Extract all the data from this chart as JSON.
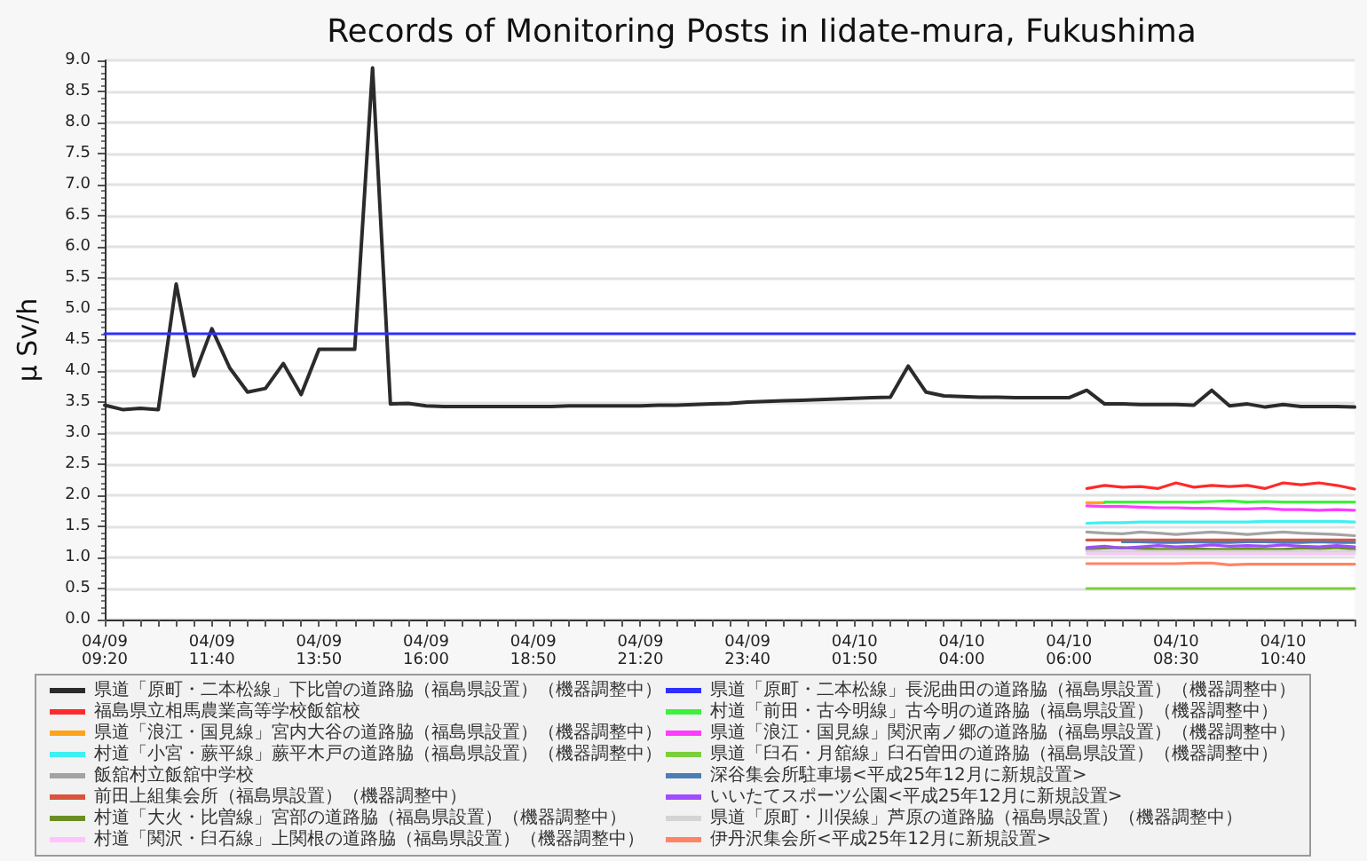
{
  "chart_data": {
    "type": "line",
    "title": "Records of Monitoring Posts in Iidate-mura, Fukushima",
    "ylabel": "μ Sv/h",
    "categories": [
      "04/09 09:20",
      null,
      null,
      null,
      null,
      null,
      "04/09 11:40",
      null,
      null,
      null,
      null,
      null,
      "04/09 13:50",
      null,
      null,
      null,
      null,
      null,
      "04/09 16:00",
      null,
      null,
      null,
      null,
      null,
      "04/09 18:50",
      null,
      null,
      null,
      null,
      null,
      "04/09 21:20",
      null,
      null,
      null,
      null,
      null,
      "04/09 23:40",
      null,
      null,
      null,
      null,
      null,
      "04/10 01:50",
      null,
      null,
      null,
      null,
      null,
      "04/10 04:00",
      null,
      null,
      null,
      null,
      null,
      "04/10 06:00",
      null,
      null,
      null,
      null,
      null,
      "04/10 08:30",
      null,
      null,
      null,
      null,
      null,
      "04/10 10:40",
      null,
      null,
      null,
      null
    ],
    "series": [
      {
        "name": "県道「原町・二本松線」下比曽の道路脇（福島県設置）（機器調整中）",
        "color": "#2b2b2b",
        "values": [
          3.45,
          3.38,
          3.4,
          3.38,
          5.4,
          3.92,
          4.68,
          4.05,
          3.66,
          3.72,
          4.12,
          3.62,
          4.35,
          4.35,
          4.35,
          8.88,
          3.47,
          3.48,
          3.44,
          3.43,
          3.43,
          3.43,
          3.43,
          3.43,
          3.43,
          3.43,
          3.44,
          3.44,
          3.44,
          3.44,
          3.44,
          3.45,
          3.45,
          3.46,
          3.47,
          3.48,
          3.5,
          3.51,
          3.52,
          3.53,
          3.54,
          3.55,
          3.56,
          3.57,
          3.58,
          4.08,
          3.66,
          3.6,
          3.59,
          3.58,
          3.58,
          3.57,
          3.57,
          3.57,
          3.57,
          3.69,
          3.47,
          3.47,
          3.46,
          3.46,
          3.46,
          3.45,
          3.69,
          3.44,
          3.47,
          3.42,
          3.46,
          3.43,
          3.43,
          3.43,
          3.42
        ]
      },
      {
        "name": "福島県立相馬農業高等学校飯舘校",
        "color": "#ff2a2a",
        "values": [
          null,
          null,
          null,
          null,
          null,
          null,
          null,
          null,
          null,
          null,
          null,
          null,
          null,
          null,
          null,
          null,
          null,
          null,
          null,
          null,
          null,
          null,
          null,
          null,
          null,
          null,
          null,
          null,
          null,
          null,
          null,
          null,
          null,
          null,
          null,
          null,
          null,
          null,
          null,
          null,
          null,
          null,
          null,
          null,
          null,
          null,
          null,
          null,
          null,
          null,
          null,
          null,
          null,
          null,
          null,
          2.11,
          2.16,
          2.13,
          2.14,
          2.11,
          2.2,
          2.13,
          2.16,
          2.14,
          2.16,
          2.11,
          2.2,
          2.17,
          2.2,
          2.16,
          2.1
        ]
      },
      {
        "name": "県道「浪江・国見線」宮内大谷の道路脇（福島県設置）（機器調整中）",
        "color": "#ffa31a",
        "values": [
          null,
          null,
          null,
          null,
          null,
          null,
          null,
          null,
          null,
          null,
          null,
          null,
          null,
          null,
          null,
          null,
          null,
          null,
          null,
          null,
          null,
          null,
          null,
          null,
          null,
          null,
          null,
          null,
          null,
          null,
          null,
          null,
          null,
          null,
          null,
          null,
          null,
          null,
          null,
          null,
          null,
          null,
          null,
          null,
          null,
          null,
          null,
          null,
          null,
          null,
          null,
          null,
          null,
          null,
          null,
          1.88,
          1.88,
          null,
          null,
          null,
          null,
          null,
          null,
          null,
          null,
          null,
          null,
          null,
          null,
          null,
          null
        ]
      },
      {
        "name": "村道「小宮・蕨平線」蕨平木戸の道路脇（福島県設置）（機器調整中）",
        "color": "#3ff0f0",
        "values": [
          null,
          null,
          null,
          null,
          null,
          null,
          null,
          null,
          null,
          null,
          null,
          null,
          null,
          null,
          null,
          null,
          null,
          null,
          null,
          null,
          null,
          null,
          null,
          null,
          null,
          null,
          null,
          null,
          null,
          null,
          null,
          null,
          null,
          null,
          null,
          null,
          null,
          null,
          null,
          null,
          null,
          null,
          null,
          null,
          null,
          null,
          null,
          null,
          null,
          null,
          null,
          null,
          null,
          null,
          null,
          1.55,
          1.56,
          1.56,
          1.57,
          1.57,
          1.57,
          1.57,
          1.57,
          1.57,
          1.57,
          1.58,
          1.58,
          1.58,
          1.58,
          1.58,
          1.57
        ]
      },
      {
        "name": "飯舘村立飯舘中学校",
        "color": "#a3a3a3",
        "values": [
          null,
          null,
          null,
          null,
          null,
          null,
          null,
          null,
          null,
          null,
          null,
          null,
          null,
          null,
          null,
          null,
          null,
          null,
          null,
          null,
          null,
          null,
          null,
          null,
          null,
          null,
          null,
          null,
          null,
          null,
          null,
          null,
          null,
          null,
          null,
          null,
          null,
          null,
          null,
          null,
          null,
          null,
          null,
          null,
          null,
          null,
          null,
          null,
          null,
          null,
          null,
          null,
          null,
          null,
          null,
          1.41,
          1.39,
          1.38,
          1.41,
          1.39,
          1.37,
          1.39,
          1.41,
          1.39,
          1.37,
          1.39,
          1.41,
          1.39,
          1.38,
          1.37,
          1.35
        ]
      },
      {
        "name": "前田上組集会所（福島県設置）（機器調整中）",
        "color": "#d9543f",
        "values": [
          null,
          null,
          null,
          null,
          null,
          null,
          null,
          null,
          null,
          null,
          null,
          null,
          null,
          null,
          null,
          null,
          null,
          null,
          null,
          null,
          null,
          null,
          null,
          null,
          null,
          null,
          null,
          null,
          null,
          null,
          null,
          null,
          null,
          null,
          null,
          null,
          null,
          null,
          null,
          null,
          null,
          null,
          null,
          null,
          null,
          null,
          null,
          null,
          null,
          null,
          null,
          null,
          null,
          null,
          null,
          1.28,
          1.28,
          1.28,
          1.28,
          1.28,
          1.28,
          1.28,
          1.28,
          1.28,
          1.28,
          1.28,
          1.28,
          1.28,
          1.28,
          1.28,
          1.28
        ]
      },
      {
        "name": "村道「大火・比曽線」宮部の道路脇（福島県設置）（機器調整中）",
        "color": "#6b8e23",
        "values": [
          null,
          null,
          null,
          null,
          null,
          null,
          null,
          null,
          null,
          null,
          null,
          null,
          null,
          null,
          null,
          null,
          null,
          null,
          null,
          null,
          null,
          null,
          null,
          null,
          null,
          null,
          null,
          null,
          null,
          null,
          null,
          null,
          null,
          null,
          null,
          null,
          null,
          null,
          null,
          null,
          null,
          null,
          null,
          null,
          null,
          null,
          null,
          null,
          null,
          null,
          null,
          null,
          null,
          null,
          null,
          1.13,
          1.15,
          1.16,
          1.14,
          1.13,
          1.13,
          1.14,
          1.13,
          1.13,
          1.14,
          1.13,
          1.13,
          1.15,
          1.14,
          1.16,
          1.13
        ]
      },
      {
        "name": "村道「関沢・臼石線」上関根の道路脇（福島県設置）（機器調整中）",
        "color": "#ffc4ff",
        "values": [
          null,
          null,
          null,
          null,
          null,
          null,
          null,
          null,
          null,
          null,
          null,
          null,
          null,
          null,
          null,
          null,
          null,
          null,
          null,
          null,
          null,
          null,
          null,
          null,
          null,
          null,
          null,
          null,
          null,
          null,
          null,
          null,
          null,
          null,
          null,
          null,
          null,
          null,
          null,
          null,
          null,
          null,
          null,
          null,
          null,
          null,
          null,
          null,
          null,
          null,
          null,
          null,
          null,
          null,
          null,
          1.06,
          1.06,
          1.06,
          1.06,
          1.06,
          1.06,
          1.06,
          1.06,
          1.06,
          1.06,
          1.06,
          1.06,
          1.06,
          1.06,
          1.06,
          1.06
        ]
      },
      {
        "name": "県道「原町・二本松線」長泥曲田の道路脇（福島県設置）（機器調整中）",
        "color": "#2f2fff",
        "values": [
          4.6,
          4.6,
          4.6,
          4.6,
          4.6,
          4.6,
          4.6,
          4.6,
          4.6,
          4.6,
          4.6,
          4.6,
          4.6,
          4.6,
          4.6,
          4.6,
          4.6,
          4.6,
          4.6,
          4.6,
          4.6,
          4.6,
          4.6,
          4.6,
          4.6,
          4.6,
          4.6,
          4.6,
          4.6,
          4.6,
          4.6,
          4.6,
          4.6,
          4.6,
          4.6,
          4.6,
          4.6,
          4.6,
          4.6,
          4.6,
          4.6,
          4.6,
          4.6,
          4.6,
          4.6,
          4.6,
          4.6,
          4.6,
          4.6,
          4.6,
          4.6,
          4.6,
          4.6,
          4.6,
          4.6,
          4.6,
          4.6,
          4.6,
          4.6,
          4.6,
          4.6,
          4.6,
          4.6,
          4.6,
          4.6,
          4.6,
          4.6,
          4.6,
          4.6,
          4.6,
          4.6
        ]
      },
      {
        "name": "村道「前田・古今明線」古今明の道路脇（福島県設置）（機器調整中）",
        "color": "#3cf03c",
        "values": [
          null,
          null,
          null,
          null,
          null,
          null,
          null,
          null,
          null,
          null,
          null,
          null,
          null,
          null,
          null,
          null,
          null,
          null,
          null,
          null,
          null,
          null,
          null,
          null,
          null,
          null,
          null,
          null,
          null,
          null,
          null,
          null,
          null,
          null,
          null,
          null,
          null,
          null,
          null,
          null,
          null,
          null,
          null,
          null,
          null,
          null,
          null,
          null,
          null,
          null,
          null,
          null,
          null,
          null,
          null,
          null,
          1.89,
          1.89,
          1.89,
          1.89,
          1.89,
          1.89,
          1.9,
          1.91,
          1.89,
          1.9,
          1.89,
          1.89,
          1.89,
          1.89,
          1.89
        ]
      },
      {
        "name": "県道「浪江・国見線」関沢南ノ郷の道路脇（福島県設置）（機器調整中）",
        "color": "#ff3cff",
        "values": [
          null,
          null,
          null,
          null,
          null,
          null,
          null,
          null,
          null,
          null,
          null,
          null,
          null,
          null,
          null,
          null,
          null,
          null,
          null,
          null,
          null,
          null,
          null,
          null,
          null,
          null,
          null,
          null,
          null,
          null,
          null,
          null,
          null,
          null,
          null,
          null,
          null,
          null,
          null,
          null,
          null,
          null,
          null,
          null,
          null,
          null,
          null,
          null,
          null,
          null,
          null,
          null,
          null,
          null,
          null,
          1.83,
          1.82,
          1.82,
          1.81,
          1.8,
          1.8,
          1.79,
          1.79,
          1.78,
          1.78,
          1.79,
          1.77,
          1.77,
          1.76,
          1.77,
          1.76
        ]
      },
      {
        "name": "県道「臼石・月舘線」臼石曽田の道路脇（福島県設置）（機器調整中）",
        "color": "#7ccf3c",
        "values": [
          null,
          null,
          null,
          null,
          null,
          null,
          null,
          null,
          null,
          null,
          null,
          null,
          null,
          null,
          null,
          null,
          null,
          null,
          null,
          null,
          null,
          null,
          null,
          null,
          null,
          null,
          null,
          null,
          null,
          null,
          null,
          null,
          null,
          null,
          null,
          null,
          null,
          null,
          null,
          null,
          null,
          null,
          null,
          null,
          null,
          null,
          null,
          null,
          null,
          null,
          null,
          null,
          null,
          null,
          null,
          0.5,
          0.5,
          0.5,
          0.5,
          0.5,
          0.5,
          0.5,
          0.5,
          0.5,
          0.5,
          0.5,
          0.5,
          0.5,
          0.5,
          0.5,
          0.5
        ]
      },
      {
        "name": "深谷集会所駐車場<平成25年12月に新規設置>",
        "color": "#4a7fb5",
        "values": [
          null,
          null,
          null,
          null,
          null,
          null,
          null,
          null,
          null,
          null,
          null,
          null,
          null,
          null,
          null,
          null,
          null,
          null,
          null,
          null,
          null,
          null,
          null,
          null,
          null,
          null,
          null,
          null,
          null,
          null,
          null,
          null,
          null,
          null,
          null,
          null,
          null,
          null,
          null,
          null,
          null,
          null,
          null,
          null,
          null,
          null,
          null,
          null,
          null,
          null,
          null,
          null,
          null,
          null,
          null,
          null,
          null,
          1.25,
          1.25,
          1.24,
          1.24,
          1.25,
          1.24,
          1.24,
          1.25,
          1.25,
          1.24,
          1.24,
          1.25,
          1.24,
          1.24
        ]
      },
      {
        "name": "いいたてスポーツ公園<平成25年12月に新規設置>",
        "color": "#a04cff",
        "values": [
          null,
          null,
          null,
          null,
          null,
          null,
          null,
          null,
          null,
          null,
          null,
          null,
          null,
          null,
          null,
          null,
          null,
          null,
          null,
          null,
          null,
          null,
          null,
          null,
          null,
          null,
          null,
          null,
          null,
          null,
          null,
          null,
          null,
          null,
          null,
          null,
          null,
          null,
          null,
          null,
          null,
          null,
          null,
          null,
          null,
          null,
          null,
          null,
          null,
          null,
          null,
          null,
          null,
          null,
          null,
          1.16,
          1.18,
          1.15,
          1.17,
          1.19,
          1.17,
          1.18,
          1.2,
          1.18,
          1.19,
          1.18,
          1.2,
          1.18,
          1.17,
          1.19,
          1.17
        ]
      },
      {
        "name": "県道「原町・川俣線」芦原の道路脇（福島県設置）（機器調整中）",
        "color": "#d4d4d4",
        "values": [
          null,
          null,
          null,
          null,
          null,
          null,
          null,
          null,
          null,
          null,
          null,
          null,
          null,
          null,
          null,
          null,
          null,
          null,
          null,
          null,
          null,
          null,
          null,
          null,
          null,
          null,
          null,
          null,
          null,
          null,
          null,
          null,
          null,
          null,
          null,
          null,
          null,
          null,
          null,
          null,
          null,
          null,
          null,
          null,
          null,
          null,
          null,
          null,
          null,
          null,
          null,
          null,
          null,
          null,
          null,
          1.1,
          1.1,
          1.1,
          1.1,
          1.1,
          1.1,
          1.1,
          1.1,
          1.1,
          1.1,
          1.1,
          1.1,
          1.1,
          1.1,
          1.1,
          1.1
        ]
      },
      {
        "name": "伊丹沢集会所<平成25年12月に新規設置>",
        "color": "#ff8466",
        "values": [
          null,
          null,
          null,
          null,
          null,
          null,
          null,
          null,
          null,
          null,
          null,
          null,
          null,
          null,
          null,
          null,
          null,
          null,
          null,
          null,
          null,
          null,
          null,
          null,
          null,
          null,
          null,
          null,
          null,
          null,
          null,
          null,
          null,
          null,
          null,
          null,
          null,
          null,
          null,
          null,
          null,
          null,
          null,
          null,
          null,
          null,
          null,
          null,
          null,
          null,
          null,
          null,
          null,
          null,
          null,
          0.9,
          0.9,
          0.9,
          0.9,
          0.9,
          0.9,
          0.91,
          0.91,
          0.88,
          0.89,
          0.89,
          0.89,
          0.89,
          0.89,
          0.89,
          0.89
        ]
      }
    ],
    "ylim": [
      0,
      9
    ],
    "yticks": [
      {
        "value": 0,
        "label": "0.0"
      },
      {
        "value": 0.5,
        "label": "0.5"
      },
      {
        "value": 1,
        "label": "1.0"
      },
      {
        "value": 1.5,
        "label": "1.5"
      },
      {
        "value": 2,
        "label": "2.0"
      },
      {
        "value": 2.5,
        "label": "2.5"
      },
      {
        "value": 3,
        "label": "3.0"
      },
      {
        "value": 3.5,
        "label": "3.5"
      },
      {
        "value": 4,
        "label": "4.0"
      },
      {
        "value": 4.5,
        "label": "4.5"
      },
      {
        "value": 5,
        "label": "5.0"
      },
      {
        "value": 5.5,
        "label": "5.5"
      },
      {
        "value": 6,
        "label": "6.0"
      },
      {
        "value": 6.5,
        "label": "6.5"
      },
      {
        "value": 7,
        "label": "7.0"
      },
      {
        "value": 7.5,
        "label": "7.5"
      },
      {
        "value": 8,
        "label": "8.0"
      },
      {
        "value": 8.5,
        "label": "8.5"
      },
      {
        "value": 9,
        "label": "9.0"
      }
    ],
    "grid": "y",
    "legend": "bottom left",
    "marker": "none"
  }
}
